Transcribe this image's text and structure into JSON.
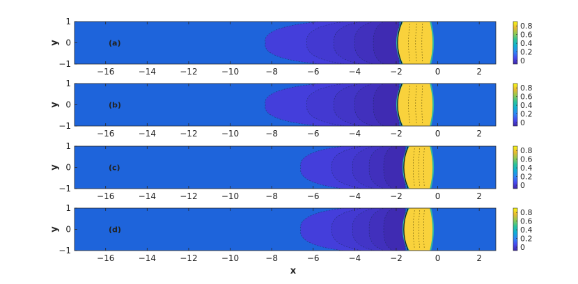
{
  "figure": {
    "xlabel": "x",
    "ylabel": "y"
  },
  "chart_data": [
    {
      "type": "heatmap",
      "panel_label": "(a)",
      "xlabel": "",
      "ylabel": "y",
      "xlim": [
        -17.5,
        2.8
      ],
      "ylim": [
        -1,
        1
      ],
      "xticks": [
        "−16",
        "−14",
        "−12",
        "−10",
        "−8",
        "−6",
        "−4",
        "−2",
        "0",
        "2"
      ],
      "yticks": [
        "−1",
        "0",
        "1"
      ],
      "colorbar_ticks": [
        "0",
        "0.2",
        "0.4",
        "0.6",
        "0.8"
      ],
      "colorbar_range": [
        -0.08,
        0.9
      ],
      "front": {
        "x_left": -2.0,
        "x_right": -0.3,
        "value_max": 0.9
      },
      "tail_contours": [
        {
          "x_tip": -8.3,
          "value": 0.02
        },
        {
          "x_tip": -6.3,
          "value": 0.0
        },
        {
          "x_tip": -5.0,
          "value": -0.02
        },
        {
          "x_tip": -4.0,
          "value": -0.04
        },
        {
          "x_tip": -3.1,
          "value": -0.06
        }
      ]
    },
    {
      "type": "heatmap",
      "panel_label": "(b)",
      "xlabel": "",
      "ylabel": "y",
      "xlim": [
        -17.5,
        2.8
      ],
      "ylim": [
        -1,
        1
      ],
      "xticks": [
        "−16",
        "−14",
        "−12",
        "−10",
        "−8",
        "−6",
        "−4",
        "−2",
        "0",
        "2"
      ],
      "yticks": [
        "−1",
        "0",
        "1"
      ],
      "colorbar_ticks": [
        "0",
        "0.2",
        "0.4",
        "0.6",
        "0.8"
      ],
      "colorbar_range": [
        -0.08,
        0.9
      ],
      "front": {
        "x_left": -2.0,
        "x_right": -0.3,
        "value_max": 0.9
      },
      "tail_contours": [
        {
          "x_tip": -8.3,
          "value": 0.02
        },
        {
          "x_tip": -6.3,
          "value": 0.0
        },
        {
          "x_tip": -5.0,
          "value": -0.02
        },
        {
          "x_tip": -4.0,
          "value": -0.04
        },
        {
          "x_tip": -3.1,
          "value": -0.06
        }
      ]
    },
    {
      "type": "heatmap",
      "panel_label": "(c)",
      "xlabel": "",
      "ylabel": "y",
      "xlim": [
        -17.5,
        2.8
      ],
      "ylim": [
        -1,
        1
      ],
      "xticks": [
        "−16",
        "−14",
        "−12",
        "−10",
        "−8",
        "−6",
        "−4",
        "−2",
        "0",
        "2"
      ],
      "yticks": [
        "−1",
        "0",
        "1"
      ],
      "colorbar_ticks": [
        "0",
        "0.2",
        "0.4",
        "0.6",
        "0.8"
      ],
      "colorbar_range": [
        -0.08,
        0.9
      ],
      "front": {
        "x_left": -1.7,
        "x_right": -0.3,
        "value_max": 0.9
      },
      "tail_contours": [
        {
          "x_tip": -6.6,
          "value": 0.02
        },
        {
          "x_tip": -5.1,
          "value": 0.0
        },
        {
          "x_tip": -4.1,
          "value": -0.02
        },
        {
          "x_tip": -3.3,
          "value": -0.04
        },
        {
          "x_tip": -2.6,
          "value": -0.06
        }
      ]
    },
    {
      "type": "heatmap",
      "panel_label": "(d)",
      "xlabel": "x",
      "ylabel": "y",
      "xlim": [
        -17.5,
        2.8
      ],
      "ylim": [
        -1,
        1
      ],
      "xticks": [
        "−16",
        "−14",
        "−12",
        "−10",
        "−8",
        "−6",
        "−4",
        "−2",
        "0",
        "2"
      ],
      "yticks": [
        "−1",
        "0",
        "1"
      ],
      "colorbar_ticks": [
        "0",
        "0.2",
        "0.4",
        "0.6",
        "0.8"
      ],
      "colorbar_range": [
        -0.08,
        0.9
      ],
      "front": {
        "x_left": -1.7,
        "x_right": -0.3,
        "value_max": 0.9
      },
      "tail_contours": [
        {
          "x_tip": -6.6,
          "value": 0.02
        },
        {
          "x_tip": -5.1,
          "value": 0.0
        },
        {
          "x_tip": -4.1,
          "value": -0.02
        },
        {
          "x_tip": -3.3,
          "value": -0.04
        },
        {
          "x_tip": -2.6,
          "value": -0.06
        }
      ]
    }
  ],
  "colors": {
    "background": "#1e64db",
    "front_fill": "#f9d23c",
    "front_edge": "#2fb5a3",
    "contour_line": "#1a2a5a",
    "colormap": [
      "#3e26a8",
      "#4748f0",
      "#2e87f7",
      "#0fb0d4",
      "#2ac49a",
      "#8fcb52",
      "#e9ba30",
      "#f9fb15"
    ]
  }
}
